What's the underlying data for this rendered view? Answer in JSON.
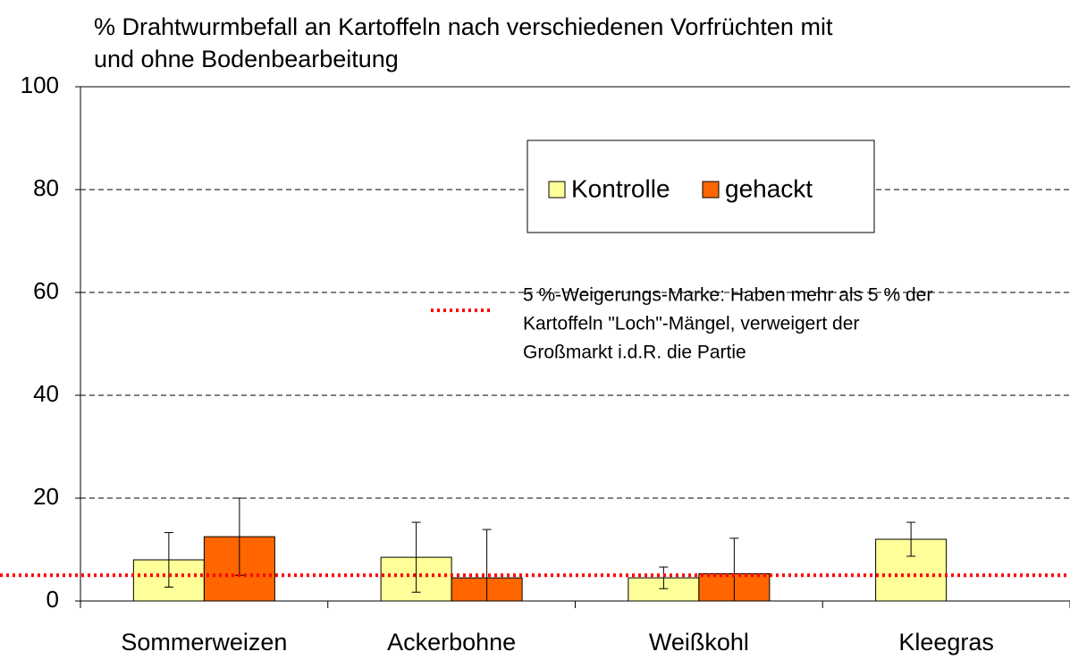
{
  "chart_data": {
    "type": "bar",
    "title": [
      "% Drahtwurmbefall an Kartoffeln nach verschiedenen Vorfrüchten mit",
      "und ohne Bodenbearbeitung"
    ],
    "categories": [
      "Sommerweizen",
      "Ackerbohne",
      "Weißkohl",
      "Kleegras"
    ],
    "series": [
      {
        "name": "Kontrolle",
        "color": "#ffff99",
        "values": [
          8,
          8.5,
          4.5,
          12
        ],
        "errors": [
          5.3,
          6.8,
          2.1,
          3.3
        ]
      },
      {
        "name": "gehackt",
        "color": "#ff6600",
        "values": [
          12.5,
          4.5,
          5.3,
          null
        ],
        "errors": [
          7.5,
          9.4,
          6.9,
          null
        ]
      }
    ],
    "ylim": [
      0,
      100
    ],
    "yticks": [
      0,
      20,
      40,
      60,
      80,
      100
    ],
    "grid": true,
    "reference_line": {
      "value": 5,
      "color": "#ff0000",
      "label": [
        "5 %-Weigerungs-Marke: Haben mehr als 5 % der",
        "Kartoffeln  \"Loch\"-Mängel, verweigert der",
        "Großmarkt i.d.R. die Partie"
      ]
    }
  }
}
